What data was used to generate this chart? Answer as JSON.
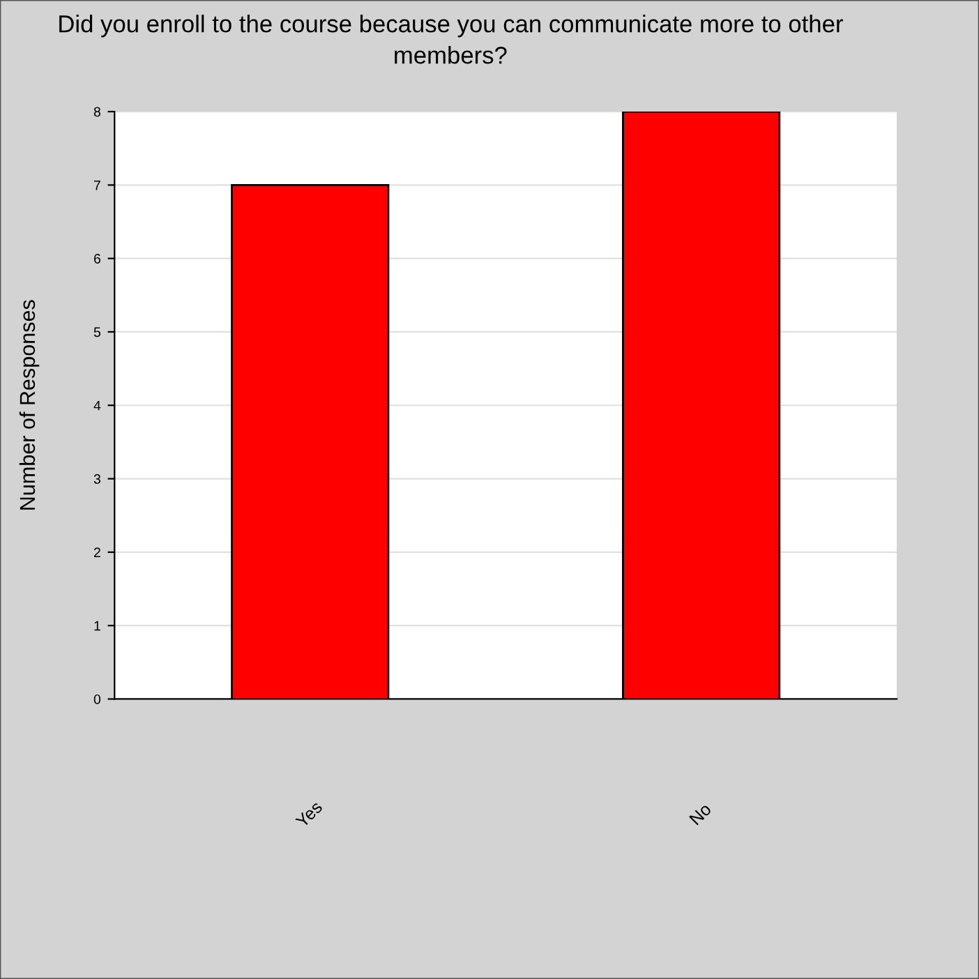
{
  "chart_data": {
    "type": "bar",
    "title": "Did you enroll to the course because you can communicate more to other members?",
    "ylabel": "Number of Responses",
    "categories": [
      "Yes",
      "No"
    ],
    "values": [
      7,
      8
    ],
    "color": "#ff0000",
    "ylim": [
      0,
      8
    ],
    "yticks": [
      0,
      1,
      2,
      3,
      4,
      5,
      6,
      7,
      8
    ],
    "grid": "y"
  }
}
